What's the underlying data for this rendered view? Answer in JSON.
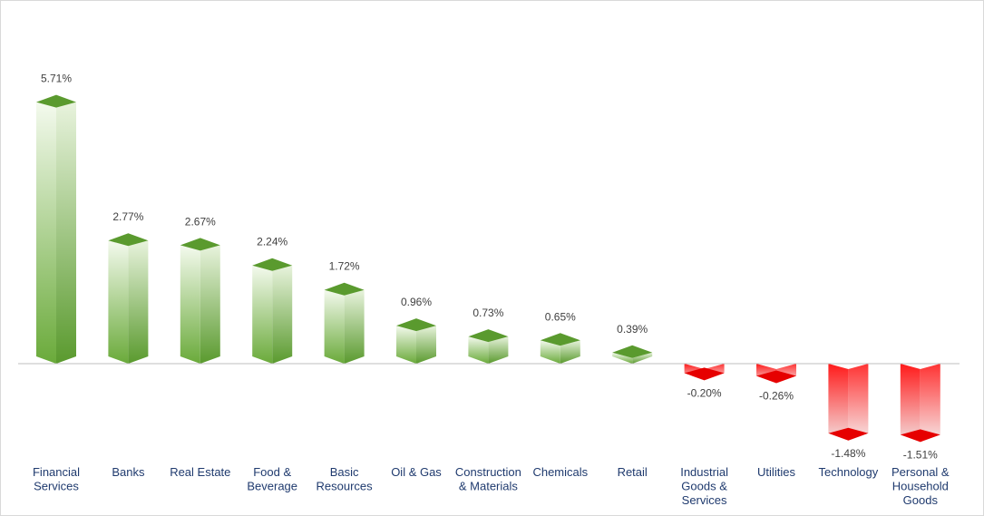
{
  "chart_data": {
    "type": "bar",
    "title": "",
    "xlabel": "",
    "ylabel": "",
    "ylim": [
      -2,
      6
    ],
    "grid": false,
    "legend": "none",
    "categories": [
      "Financial Services",
      "Banks",
      "Real Estate",
      "Food & Beverage",
      "Basic Resources",
      "Oil & Gas",
      "Construction & Materials",
      "Chemicals",
      "Retail",
      "Industrial Goods & Services",
      "Utilities",
      "Technology",
      "Personal & Household Goods"
    ],
    "category_lines": [
      [
        "Financial",
        "Services"
      ],
      [
        "Banks"
      ],
      [
        "Real Estate"
      ],
      [
        "Food &",
        "Beverage"
      ],
      [
        "Basic",
        "Resources"
      ],
      [
        "Oil & Gas"
      ],
      [
        "Construction",
        "& Materials"
      ],
      [
        "Chemicals"
      ],
      [
        "Retail"
      ],
      [
        "Industrial",
        "Goods &",
        "Services"
      ],
      [
        "Utilities"
      ],
      [
        "Technology"
      ],
      [
        "Personal &",
        "Household",
        "Goods"
      ]
    ],
    "values": [
      5.71,
      2.77,
      2.67,
      2.24,
      1.72,
      0.96,
      0.73,
      0.65,
      0.39,
      -0.2,
      -0.26,
      -1.48,
      -1.51
    ],
    "value_labels": [
      "5.71%",
      "2.77%",
      "2.67%",
      "2.24%",
      "1.72%",
      "0.96%",
      "0.73%",
      "0.65%",
      "0.39%",
      "-0.20%",
      "-0.26%",
      "-1.48%",
      "-1.51%"
    ],
    "colors": {
      "positive": "#6aaa3a",
      "positive_light": "#eef6e6",
      "positive_top": "#5a9a2e",
      "negative": "#ff1a1a",
      "negative_light": "#f7dede",
      "negative_bottom": "#e60000",
      "axis": "#bfbfbf",
      "category_text": "#1f3a6e",
      "value_text": "#404040"
    }
  }
}
